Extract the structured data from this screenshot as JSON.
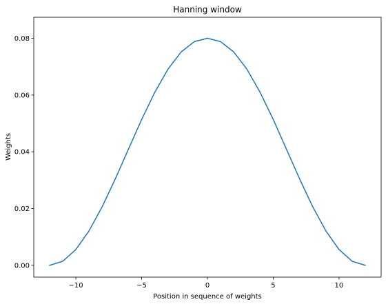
{
  "chart_data": {
    "type": "line",
    "title": "Hanning window",
    "xlabel": "Position in sequence of weights",
    "ylabel": "Weights",
    "xlim": [
      -13.2,
      13.2
    ],
    "ylim": [
      -0.00416,
      0.0874
    ],
    "x_ticks": [
      -10,
      -5,
      0,
      5,
      10
    ],
    "x_tick_labels": [
      "−10",
      "−5",
      "0",
      "5",
      "10"
    ],
    "y_ticks": [
      0.0,
      0.02,
      0.04,
      0.06,
      0.08
    ],
    "y_tick_labels": [
      "0.00",
      "0.02",
      "0.04",
      "0.06",
      "0.08"
    ],
    "grid": false,
    "legend": "none",
    "series": [
      {
        "color": "#1f77b4",
        "x": [
          -12,
          -11,
          -10,
          -9,
          -8,
          -7,
          -6,
          -5,
          -4,
          -3,
          -2,
          -1,
          0,
          1,
          2,
          3,
          4,
          5,
          6,
          7,
          8,
          9,
          10,
          11,
          12
        ],
        "y": [
          0.0,
          0.00142,
          0.00557,
          0.01213,
          0.02064,
          0.03048,
          0.04097,
          0.05138,
          0.06097,
          0.0691,
          0.07516,
          0.0788,
          0.08,
          0.0788,
          0.07516,
          0.0691,
          0.06097,
          0.05138,
          0.04097,
          0.03048,
          0.02064,
          0.01213,
          0.00557,
          0.00142,
          0.0
        ]
      }
    ]
  }
}
